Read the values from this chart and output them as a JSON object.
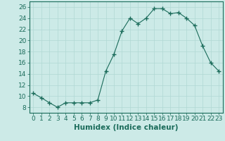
{
  "x": [
    0,
    1,
    2,
    3,
    4,
    5,
    6,
    7,
    8,
    9,
    10,
    11,
    12,
    13,
    14,
    15,
    16,
    17,
    18,
    19,
    20,
    21,
    22,
    23
  ],
  "y": [
    10.5,
    9.7,
    8.8,
    8.0,
    8.8,
    8.8,
    8.8,
    8.8,
    9.3,
    14.5,
    17.5,
    21.7,
    24.0,
    23.0,
    24.0,
    25.7,
    25.7,
    24.8,
    25.0,
    24.0,
    22.7,
    19.0,
    16.0,
    14.5
  ],
  "xlabel": "Humidex (Indice chaleur)",
  "ylim": [
    7,
    27
  ],
  "xlim": [
    -0.5,
    23.5
  ],
  "yticks": [
    8,
    10,
    12,
    14,
    16,
    18,
    20,
    22,
    24,
    26
  ],
  "xticks": [
    0,
    1,
    2,
    3,
    4,
    5,
    6,
    7,
    8,
    9,
    10,
    11,
    12,
    13,
    14,
    15,
    16,
    17,
    18,
    19,
    20,
    21,
    22,
    23
  ],
  "line_color": "#1a6b5a",
  "marker": "+",
  "marker_size": 4,
  "marker_lw": 1.0,
  "bg_color": "#cceae7",
  "grid_color": "#b0d8d4",
  "xlabel_fontsize": 7.5,
  "tick_fontsize": 6.5
}
